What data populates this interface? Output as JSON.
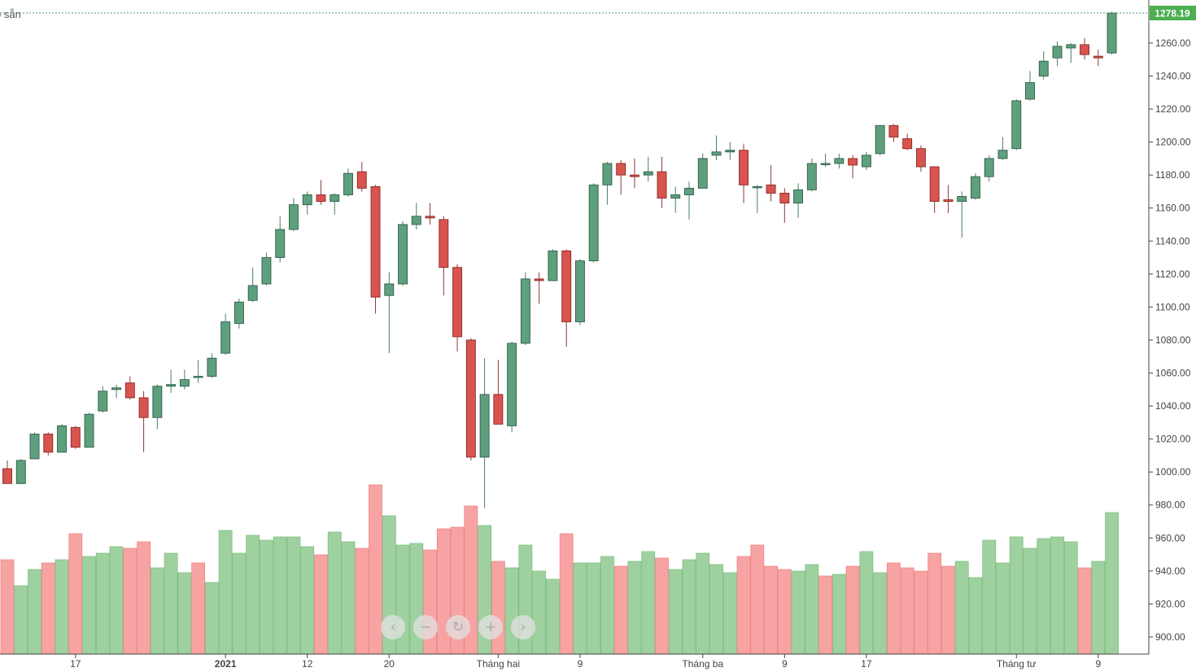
{
  "top_left_label": "ó sẵn",
  "last_price_label": "1278.19",
  "colors": {
    "up_candle": "#5e9f7e",
    "down_candle": "#d9534f",
    "up_volume": "#9fd1a0",
    "down_volume": "#f7a3a3",
    "price_tag": "#4caf50",
    "dotted_line": "#4a9a7a"
  },
  "nav_buttons": [
    {
      "name": "scroll-left",
      "glyph": "‹"
    },
    {
      "name": "zoom-out",
      "glyph": "−"
    },
    {
      "name": "reset",
      "glyph": "↻"
    },
    {
      "name": "zoom-in",
      "glyph": "+"
    },
    {
      "name": "scroll-right",
      "glyph": "›"
    }
  ],
  "chart_data": {
    "type": "candlestick",
    "y_axis": {
      "ticks": [
        900,
        920,
        940,
        960,
        980,
        1000,
        1020,
        1040,
        1060,
        1080,
        1100,
        1120,
        1140,
        1160,
        1180,
        1200,
        1220,
        1240,
        1260
      ],
      "range": [
        890,
        1285
      ],
      "tick_format": "{v}.00",
      "position": "right"
    },
    "x_axis": {
      "labels": [
        {
          "index": 5,
          "text": "17",
          "bold": false
        },
        {
          "index": 16,
          "text": "2021",
          "bold": true
        },
        {
          "index": 22,
          "text": "12",
          "bold": false
        },
        {
          "index": 28,
          "text": "20",
          "bold": false
        },
        {
          "index": 36,
          "text": "Tháng hai",
          "bold": false
        },
        {
          "index": 42,
          "text": "9",
          "bold": false
        },
        {
          "index": 51,
          "text": "Tháng ba",
          "bold": false
        },
        {
          "index": 57,
          "text": "9",
          "bold": false
        },
        {
          "index": 63,
          "text": "17",
          "bold": false
        },
        {
          "index": 74,
          "text": "Tháng tư",
          "bold": false
        },
        {
          "index": 80,
          "text": "9",
          "bold": false
        }
      ]
    },
    "last_price": 1278.19,
    "candles": [
      [
        1002,
        993,
        1007,
        993
      ],
      [
        993,
        1007,
        1008,
        993
      ],
      [
        1008,
        1023,
        1024,
        1008
      ],
      [
        1023,
        1012,
        1024,
        1010
      ],
      [
        1012,
        1028,
        1029,
        1012
      ],
      [
        1027,
        1015,
        1028,
        1014
      ],
      [
        1015,
        1035,
        1036,
        1015
      ],
      [
        1037,
        1049,
        1052,
        1036
      ],
      [
        1050,
        1051,
        1053,
        1045
      ],
      [
        1054,
        1045,
        1058,
        1044
      ],
      [
        1045,
        1033,
        1049,
        1012
      ],
      [
        1033,
        1052,
        1053,
        1026
      ],
      [
        1052,
        1053,
        1062,
        1048
      ],
      [
        1052,
        1056,
        1062,
        1050
      ],
      [
        1058,
        1058,
        1068,
        1054
      ],
      [
        1058,
        1069,
        1072,
        1057
      ],
      [
        1072,
        1091,
        1096,
        1071
      ],
      [
        1090,
        1103,
        1105,
        1087
      ],
      [
        1104,
        1113,
        1124,
        1103
      ],
      [
        1114,
        1130,
        1133,
        1113
      ],
      [
        1130,
        1147,
        1155,
        1127
      ],
      [
        1147,
        1162,
        1166,
        1146
      ],
      [
        1162,
        1168,
        1170,
        1156
      ],
      [
        1168,
        1164,
        1177,
        1162
      ],
      [
        1164,
        1168,
        1169,
        1156
      ],
      [
        1168,
        1181,
        1184,
        1167
      ],
      [
        1182,
        1172,
        1188,
        1170
      ],
      [
        1173,
        1106,
        1174,
        1096
      ],
      [
        1107,
        1114,
        1121,
        1072
      ],
      [
        1114,
        1150,
        1152,
        1113
      ],
      [
        1150,
        1155,
        1163,
        1147
      ],
      [
        1155,
        1154,
        1163,
        1150
      ],
      [
        1153,
        1124,
        1155,
        1107
      ],
      [
        1124,
        1082,
        1126,
        1073
      ],
      [
        1080,
        1009,
        1081,
        1007
      ],
      [
        1009,
        1047,
        1069,
        978
      ],
      [
        1047,
        1029,
        1068,
        1029
      ],
      [
        1028,
        1078,
        1079,
        1024
      ],
      [
        1078,
        1117,
        1121,
        1077
      ],
      [
        1117,
        1116,
        1121,
        1102
      ],
      [
        1116,
        1134,
        1135,
        1116
      ],
      [
        1134,
        1091,
        1135,
        1076
      ],
      [
        1091,
        1128,
        1129,
        1089
      ],
      [
        1128,
        1174,
        1175,
        1127
      ],
      [
        1174,
        1187,
        1188,
        1162
      ],
      [
        1187,
        1180,
        1189,
        1168
      ],
      [
        1180,
        1179,
        1190,
        1172
      ],
      [
        1180,
        1182,
        1191,
        1176
      ],
      [
        1182,
        1166,
        1191,
        1160
      ],
      [
        1166,
        1168,
        1173,
        1157
      ],
      [
        1168,
        1172,
        1176,
        1153
      ],
      [
        1172,
        1190,
        1193,
        1172
      ],
      [
        1192,
        1194,
        1204,
        1189
      ],
      [
        1194,
        1195,
        1200,
        1189
      ],
      [
        1195,
        1174,
        1199,
        1163
      ],
      [
        1173,
        1173,
        1174,
        1157
      ],
      [
        1174,
        1169,
        1186,
        1164
      ],
      [
        1169,
        1163,
        1172,
        1151
      ],
      [
        1163,
        1171,
        1175,
        1154
      ],
      [
        1171,
        1187,
        1190,
        1170
      ],
      [
        1187,
        1187,
        1193,
        1185
      ],
      [
        1187,
        1190,
        1193,
        1184
      ],
      [
        1190,
        1186,
        1192,
        1178
      ],
      [
        1185,
        1192,
        1194,
        1183
      ],
      [
        1193,
        1210,
        1210,
        1192
      ],
      [
        1210,
        1203,
        1211,
        1200
      ],
      [
        1202,
        1196,
        1205,
        1195
      ],
      [
        1196,
        1185,
        1198,
        1182
      ],
      [
        1185,
        1164,
        1185,
        1157
      ],
      [
        1165,
        1164,
        1174,
        1157
      ],
      [
        1164,
        1167,
        1170,
        1142
      ],
      [
        1166,
        1179,
        1181,
        1165
      ],
      [
        1179,
        1190,
        1192,
        1176
      ],
      [
        1190,
        1195,
        1203,
        1189
      ],
      [
        1196,
        1225,
        1226,
        1195
      ],
      [
        1226,
        1236,
        1243,
        1225
      ],
      [
        1240,
        1249,
        1255,
        1238
      ],
      [
        1251,
        1258,
        1261,
        1246
      ],
      [
        1257,
        1259,
        1260,
        1248
      ],
      [
        1259,
        1253,
        1263,
        1250
      ],
      [
        1252,
        1251,
        1256,
        1246
      ],
      [
        1254,
        1278.19,
        1279,
        1253
      ]
    ],
    "volume_scale": {
      "min": 0,
      "max": 100
    },
    "volumes": [
      [
        58,
        false
      ],
      [
        42,
        true
      ],
      [
        52,
        true
      ],
      [
        56,
        false
      ],
      [
        58,
        true
      ],
      [
        74,
        false
      ],
      [
        60,
        true
      ],
      [
        62,
        true
      ],
      [
        66,
        true
      ],
      [
        65,
        false
      ],
      [
        69,
        false
      ],
      [
        53,
        true
      ],
      [
        62,
        true
      ],
      [
        50,
        true
      ],
      [
        56,
        false
      ],
      [
        44,
        true
      ],
      [
        76,
        true
      ],
      [
        62,
        true
      ],
      [
        73,
        true
      ],
      [
        70,
        true
      ],
      [
        72,
        true
      ],
      [
        72,
        true
      ],
      [
        66,
        true
      ],
      [
        61,
        false
      ],
      [
        75,
        true
      ],
      [
        69,
        true
      ],
      [
        65,
        false
      ],
      [
        104,
        false
      ],
      [
        85,
        true
      ],
      [
        67,
        true
      ],
      [
        68,
        true
      ],
      [
        64,
        false
      ],
      [
        77,
        false
      ],
      [
        78,
        false
      ],
      [
        91,
        false
      ],
      [
        79,
        true
      ],
      [
        57,
        false
      ],
      [
        53,
        true
      ],
      [
        67,
        true
      ],
      [
        51,
        true
      ],
      [
        46,
        true
      ],
      [
        74,
        false
      ],
      [
        56,
        true
      ],
      [
        56,
        true
      ],
      [
        60,
        true
      ],
      [
        54,
        false
      ],
      [
        57,
        true
      ],
      [
        63,
        true
      ],
      [
        59,
        false
      ],
      [
        52,
        true
      ],
      [
        58,
        true
      ],
      [
        62,
        true
      ],
      [
        55,
        true
      ],
      [
        50,
        true
      ],
      [
        60,
        false
      ],
      [
        67,
        false
      ],
      [
        54,
        false
      ],
      [
        52,
        false
      ],
      [
        51,
        true
      ],
      [
        55,
        true
      ],
      [
        48,
        false
      ],
      [
        49,
        true
      ],
      [
        54,
        false
      ],
      [
        63,
        true
      ],
      [
        50,
        true
      ],
      [
        56,
        false
      ],
      [
        53,
        false
      ],
      [
        51,
        false
      ],
      [
        62,
        false
      ],
      [
        54,
        false
      ],
      [
        57,
        true
      ],
      [
        47,
        true
      ],
      [
        70,
        true
      ],
      [
        56,
        true
      ],
      [
        72,
        true
      ],
      [
        65,
        true
      ],
      [
        71,
        true
      ],
      [
        72,
        true
      ],
      [
        69,
        true
      ],
      [
        53,
        false
      ],
      [
        57,
        true
      ],
      [
        87,
        true
      ]
    ]
  }
}
